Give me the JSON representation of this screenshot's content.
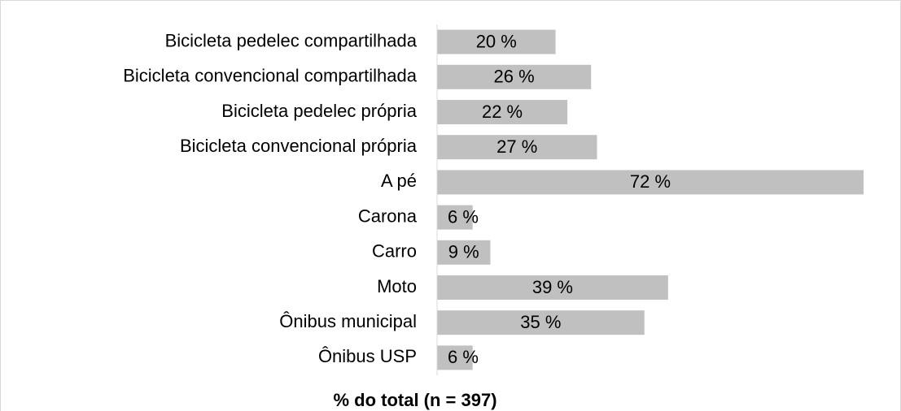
{
  "chart_data": {
    "type": "bar",
    "orientation": "horizontal",
    "x_label": "% do total (n = 397)",
    "categories": [
      "Bicicleta pedelec compartilhada",
      "Bicicleta convencional compartilhada",
      "Bicicleta pedelec própria",
      "Bicicleta convencional própria",
      "A pé",
      "Carona",
      "Carro",
      "Moto",
      "Ônibus municipal",
      "Ônibus USP"
    ],
    "values": [
      20,
      26,
      22,
      27,
      72,
      6,
      9,
      39,
      35,
      6
    ],
    "value_labels": [
      "20 %",
      "26 %",
      "22 %",
      "27 %",
      "72 %",
      "6 %",
      "9 %",
      "39 %",
      "35 %",
      "6 %"
    ],
    "color": "#c0c0c0"
  }
}
